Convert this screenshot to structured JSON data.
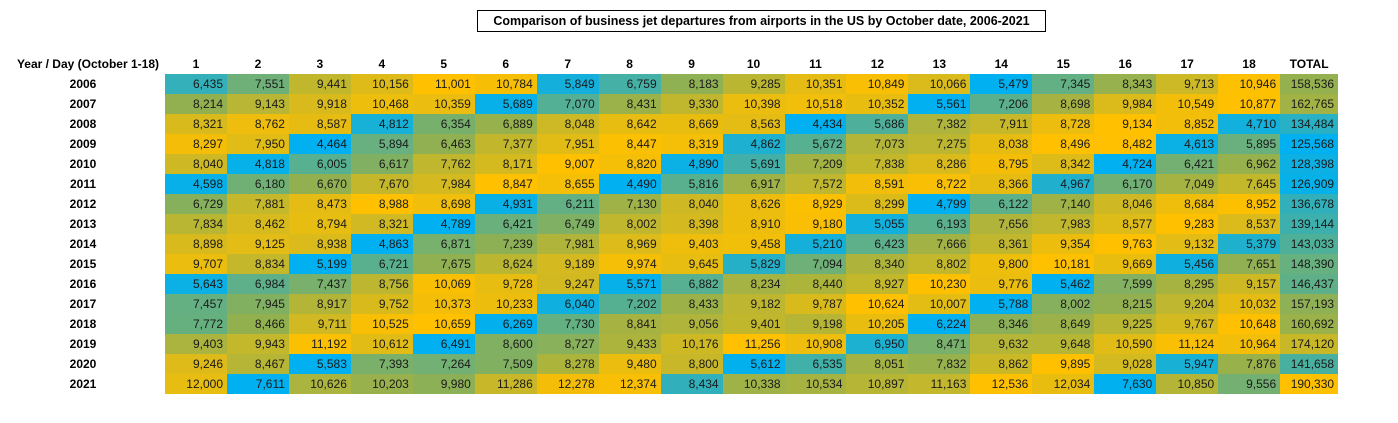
{
  "chart_data": {
    "type": "heatmap",
    "title": "Comparison of business jet departures from airports in the US by October date, 2006-2021",
    "corner_label": "Year / Day (October 1-18)",
    "columns": [
      "1",
      "2",
      "3",
      "4",
      "5",
      "6",
      "7",
      "8",
      "9",
      "10",
      "11",
      "12",
      "13",
      "14",
      "15",
      "16",
      "17",
      "18",
      "TOTAL"
    ],
    "color_scale": {
      "low": "#00b0f0",
      "mid": "#92b050",
      "high": "#ffc000"
    },
    "rows": [
      {
        "year": "2006",
        "values": [
          "6,435",
          "7,551",
          "9,441",
          "10,156",
          "11,001",
          "10,784",
          "5,849",
          "6,759",
          "8,183",
          "9,285",
          "10,351",
          "10,849",
          "10,066",
          "5,479",
          "7,345",
          "8,343",
          "9,713",
          "10,946"
        ],
        "total": "158,536"
      },
      {
        "year": "2007",
        "values": [
          "8,214",
          "9,143",
          "9,918",
          "10,468",
          "10,359",
          "5,689",
          "7,070",
          "8,431",
          "9,330",
          "10,398",
          "10,518",
          "10,352",
          "5,561",
          "7,206",
          "8,698",
          "9,984",
          "10,549",
          "10,877"
        ],
        "total": "162,765"
      },
      {
        "year": "2008",
        "values": [
          "8,321",
          "8,762",
          "8,587",
          "4,812",
          "6,354",
          "6,889",
          "8,048",
          "8,642",
          "8,669",
          "8,563",
          "4,434",
          "5,686",
          "7,382",
          "7,911",
          "8,728",
          "9,134",
          "8,852",
          "4,710"
        ],
        "total": "134,484"
      },
      {
        "year": "2009",
        "values": [
          "8,297",
          "7,950",
          "4,464",
          "5,894",
          "6,463",
          "7,377",
          "7,951",
          "8,447",
          "8,319",
          "4,862",
          "5,672",
          "7,073",
          "7,275",
          "8,038",
          "8,496",
          "8,482",
          "4,613",
          "5,895"
        ],
        "total": "125,568"
      },
      {
        "year": "2010",
        "values": [
          "8,040",
          "4,818",
          "6,005",
          "6,617",
          "7,762",
          "8,171",
          "9,007",
          "8,820",
          "4,890",
          "5,691",
          "7,209",
          "7,838",
          "8,286",
          "8,795",
          "8,342",
          "4,724",
          "6,421",
          "6,962"
        ],
        "total": "128,398"
      },
      {
        "year": "2011",
        "values": [
          "4,598",
          "6,180",
          "6,670",
          "7,670",
          "7,984",
          "8,847",
          "8,655",
          "4,490",
          "5,816",
          "6,917",
          "7,572",
          "8,591",
          "8,722",
          "8,366",
          "4,967",
          "6,170",
          "7,049",
          "7,645"
        ],
        "total": "126,909"
      },
      {
        "year": "2012",
        "values": [
          "6,729",
          "7,881",
          "8,473",
          "8,988",
          "8,698",
          "4,931",
          "6,211",
          "7,130",
          "8,040",
          "8,626",
          "8,929",
          "8,299",
          "4,799",
          "6,122",
          "7,140",
          "8,046",
          "8,684",
          "8,952"
        ],
        "total": "136,678"
      },
      {
        "year": "2013",
        "values": [
          "7,834",
          "8,462",
          "8,794",
          "8,321",
          "4,789",
          "6,421",
          "6,749",
          "8,002",
          "8,398",
          "8,910",
          "9,180",
          "5,055",
          "6,193",
          "7,656",
          "7,983",
          "8,577",
          "9,283",
          "8,537"
        ],
        "total": "139,144"
      },
      {
        "year": "2014",
        "values": [
          "8,898",
          "9,125",
          "8,938",
          "4,863",
          "6,871",
          "7,239",
          "7,981",
          "8,969",
          "9,403",
          "9,458",
          "5,210",
          "6,423",
          "7,666",
          "8,361",
          "9,354",
          "9,763",
          "9,132",
          "5,379"
        ],
        "total": "143,033"
      },
      {
        "year": "2015",
        "values": [
          "9,707",
          "8,834",
          "5,199",
          "6,721",
          "7,675",
          "8,624",
          "9,189",
          "9,974",
          "9,645",
          "5,829",
          "7,094",
          "8,340",
          "8,802",
          "9,800",
          "10,181",
          "9,669",
          "5,456",
          "7,651"
        ],
        "total": "148,390"
      },
      {
        "year": "2016",
        "values": [
          "5,643",
          "6,984",
          "7,437",
          "8,756",
          "10,069",
          "9,728",
          "9,247",
          "5,571",
          "6,882",
          "8,234",
          "8,440",
          "8,927",
          "10,230",
          "9,776",
          "5,462",
          "7,599",
          "8,295",
          "9,157"
        ],
        "total": "146,437"
      },
      {
        "year": "2017",
        "values": [
          "7,457",
          "7,945",
          "8,917",
          "9,752",
          "10,373",
          "10,233",
          "6,040",
          "7,202",
          "8,433",
          "9,182",
          "9,787",
          "10,624",
          "10,007",
          "5,788",
          "8,002",
          "8,215",
          "9,204",
          "10,032"
        ],
        "total": "157,193"
      },
      {
        "year": "2018",
        "values": [
          "7,772",
          "8,466",
          "9,711",
          "10,525",
          "10,659",
          "6,269",
          "7,730",
          "8,841",
          "9,056",
          "9,401",
          "9,198",
          "10,205",
          "6,224",
          "8,346",
          "8,649",
          "9,225",
          "9,767",
          "10,648"
        ],
        "total": "160,692"
      },
      {
        "year": "2019",
        "values": [
          "9,403",
          "9,943",
          "11,192",
          "10,612",
          "6,491",
          "8,600",
          "8,727",
          "9,433",
          "10,176",
          "11,256",
          "10,908",
          "6,950",
          "8,471",
          "9,632",
          "9,648",
          "10,590",
          "11,124",
          "10,964"
        ],
        "total": "174,120"
      },
      {
        "year": "2020",
        "values": [
          "9,246",
          "8,467",
          "5,583",
          "7,393",
          "7,264",
          "7,509",
          "8,278",
          "9,480",
          "8,800",
          "5,612",
          "6,535",
          "8,051",
          "7,832",
          "8,862",
          "9,895",
          "9,028",
          "5,947",
          "7,876"
        ],
        "total": "141,658"
      },
      {
        "year": "2021",
        "values": [
          "12,000",
          "7,611",
          "10,626",
          "10,203",
          "9,980",
          "11,286",
          "12,278",
          "12,374",
          "8,434",
          "10,338",
          "10,534",
          "10,897",
          "11,163",
          "12,536",
          "12,034",
          "7,630",
          "10,850",
          "9,556"
        ],
        "total": "190,330"
      }
    ]
  }
}
